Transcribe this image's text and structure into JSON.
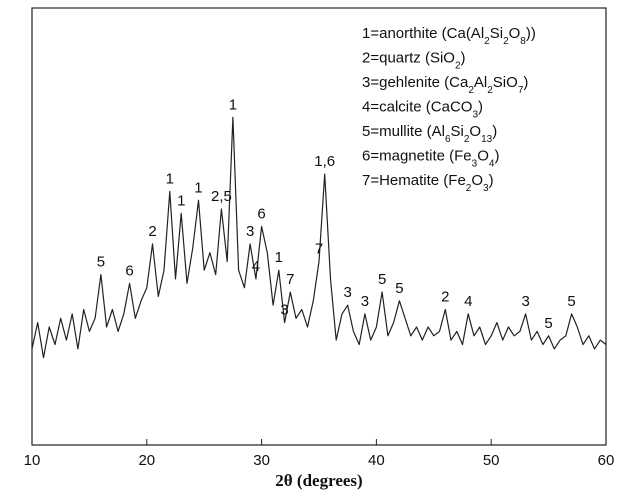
{
  "chart_data": {
    "type": "line",
    "x_label": "2θ (degrees)",
    "xlim": [
      10,
      60
    ],
    "xticks": [
      10,
      20,
      30,
      40,
      50,
      60
    ],
    "ylim": [
      0,
      100
    ],
    "series": [
      {
        "color": "#222222",
        "x": [
          10,
          10.5,
          11,
          11.5,
          12,
          12.5,
          13,
          13.5,
          14,
          14.5,
          15,
          15.5,
          16,
          16.5,
          17,
          17.5,
          18,
          18.5,
          19,
          19.5,
          20,
          20.5,
          21,
          21.5,
          22,
          22.5,
          23,
          23.5,
          24,
          24.5,
          25,
          25.5,
          26,
          26.5,
          27,
          27.5,
          28,
          28.5,
          29,
          29.5,
          30,
          30.5,
          31,
          31.5,
          32,
          32.5,
          33,
          33.5,
          34,
          34.5,
          35,
          35.5,
          36,
          36.5,
          37,
          37.5,
          38,
          38.5,
          39,
          39.5,
          40,
          40.5,
          41,
          41.5,
          42,
          42.5,
          43,
          43.5,
          44,
          44.5,
          45,
          45.5,
          46,
          46.5,
          47,
          47.5,
          48,
          48.5,
          49,
          49.5,
          50,
          50.5,
          51,
          51.5,
          52,
          52.5,
          53,
          53.5,
          54,
          54.5,
          55,
          55.5,
          56,
          56.5,
          57,
          57.5,
          58,
          58.5,
          59,
          59.5,
          60
        ],
        "values": [
          22,
          28,
          20,
          27,
          23,
          29,
          24,
          30,
          22,
          31,
          26,
          29,
          39,
          27,
          31,
          26,
          30,
          37,
          29,
          33,
          36,
          46,
          34,
          40,
          58,
          38,
          53,
          37,
          45,
          56,
          40,
          44,
          39,
          54,
          42,
          75,
          40,
          36,
          46,
          38,
          50,
          44,
          32,
          40,
          28,
          35,
          29,
          31,
          27,
          33,
          42,
          62,
          38,
          24,
          30,
          32,
          26,
          23,
          30,
          24,
          27,
          35,
          25,
          28,
          33,
          29,
          25,
          27,
          24,
          27,
          25,
          26,
          31,
          24,
          26,
          23,
          30,
          25,
          27,
          23,
          25,
          28,
          24,
          27,
          25,
          26,
          30,
          24,
          26,
          23,
          25,
          22,
          24,
          25,
          30,
          27,
          23,
          25,
          22,
          24,
          23
        ]
      }
    ],
    "peak_labels": [
      {
        "x": 16,
        "label": "5"
      },
      {
        "x": 18.5,
        "label": "6"
      },
      {
        "x": 20.5,
        "label": "2"
      },
      {
        "x": 22,
        "label": "1"
      },
      {
        "x": 23,
        "label": "1"
      },
      {
        "x": 24.5,
        "label": "1"
      },
      {
        "x": 26.5,
        "label": "2,5"
      },
      {
        "x": 27.5,
        "label": "1"
      },
      {
        "x": 29,
        "label": "3"
      },
      {
        "x": 29.5,
        "label": "4"
      },
      {
        "x": 30,
        "label": "6"
      },
      {
        "x": 31.5,
        "label": "1"
      },
      {
        "x": 32,
        "label": "3"
      },
      {
        "x": 32.5,
        "label": "7"
      },
      {
        "x": 35,
        "label": "7"
      },
      {
        "x": 35.5,
        "label": "1,6"
      },
      {
        "x": 37.5,
        "label": "3"
      },
      {
        "x": 39,
        "label": "3"
      },
      {
        "x": 40.5,
        "label": "5"
      },
      {
        "x": 42,
        "label": "5"
      },
      {
        "x": 46,
        "label": "2"
      },
      {
        "x": 48,
        "label": "4"
      },
      {
        "x": 53,
        "label": "3"
      },
      {
        "x": 55,
        "label": "5"
      },
      {
        "x": 57,
        "label": "5"
      }
    ],
    "legend_entries": [
      "1=anorthite (Ca(Al2Si2O8))",
      "2=quartz (SiO2)",
      "3=gehlenite (Ca2Al2SiO7)",
      "4=calcite (CaCO3)",
      "5=mullite (Al6Si2O13)",
      "6=magnetite (Fe3O4)",
      "7=Hematite (Fe2O3)"
    ]
  }
}
